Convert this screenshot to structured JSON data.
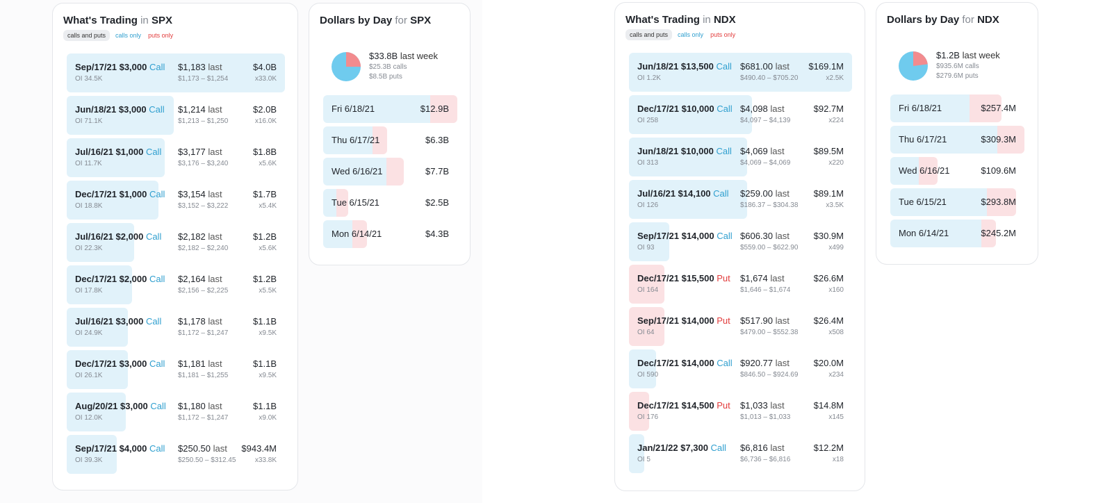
{
  "colors": {
    "call": "#2f9fcf",
    "put": "#e23b3b",
    "call_fill": "#e1f2fa",
    "put_fill": "#fbe1e3",
    "pie_calls": "#6fcbee",
    "pie_puts": "#f28b8e"
  },
  "filters": {
    "all": "calls and puts",
    "calls": "calls only",
    "puts": "puts only"
  },
  "spx": {
    "trading_title": "What's Trading",
    "trading_in": "in",
    "symbol": "SPX",
    "trades": [
      {
        "contract": "Sep/17/21 $3,000",
        "type": "Call",
        "oi": "OI 34.5K",
        "last": "$1,183",
        "last_label": "last",
        "range": "$1,173 – $1,254",
        "total": "$4.0B",
        "mult": "x33.0K",
        "fill": 1.0
      },
      {
        "contract": "Jun/18/21 $3,000",
        "type": "Call",
        "oi": "OI 71.1K",
        "last": "$1,214",
        "last_label": "last",
        "range": "$1,213 – $1,250",
        "total": "$2.0B",
        "mult": "x16.0K",
        "fill": 0.49
      },
      {
        "contract": "Jul/16/21 $1,000",
        "type": "Call",
        "oi": "OI 11.7K",
        "last": "$3,177",
        "last_label": "last",
        "range": "$3,176 – $3,240",
        "total": "$1.8B",
        "mult": "x5.6K",
        "fill": 0.45
      },
      {
        "contract": "Dec/17/21 $1,000",
        "type": "Call",
        "oi": "OI 18.8K",
        "last": "$3,154",
        "last_label": "last",
        "range": "$3,152 – $3,222",
        "total": "$1.7B",
        "mult": "x5.4K",
        "fill": 0.42
      },
      {
        "contract": "Jul/16/21 $2,000",
        "type": "Call",
        "oi": "OI 22.3K",
        "last": "$2,182",
        "last_label": "last",
        "range": "$2,182 – $2,240",
        "total": "$1.2B",
        "mult": "x5.6K",
        "fill": 0.31
      },
      {
        "contract": "Dec/17/21 $2,000",
        "type": "Call",
        "oi": "OI 17.8K",
        "last": "$2,164",
        "last_label": "last",
        "range": "$2,156 – $2,225",
        "total": "$1.2B",
        "mult": "x5.5K",
        "fill": 0.3
      },
      {
        "contract": "Jul/16/21 $3,000",
        "type": "Call",
        "oi": "OI 24.9K",
        "last": "$1,178",
        "last_label": "last",
        "range": "$1,172 – $1,247",
        "total": "$1.1B",
        "mult": "x9.5K",
        "fill": 0.28
      },
      {
        "contract": "Dec/17/21 $3,000",
        "type": "Call",
        "oi": "OI 26.1K",
        "last": "$1,181",
        "last_label": "last",
        "range": "$1,181 – $1,255",
        "total": "$1.1B",
        "mult": "x9.5K",
        "fill": 0.28
      },
      {
        "contract": "Aug/20/21 $3,000",
        "type": "Call",
        "oi": "OI 12.0K",
        "last": "$1,180",
        "last_label": "last",
        "range": "$1,172 – $1,247",
        "total": "$1.1B",
        "mult": "x9.0K",
        "fill": 0.27
      },
      {
        "contract": "Sep/17/21 $4,000",
        "type": "Call",
        "oi": "OI 39.3K",
        "last": "$250.50",
        "last_label": "last",
        "range": "$250.50 – $312.45",
        "total": "$943.4M",
        "mult": "x33.8K",
        "fill": 0.23
      }
    ],
    "dollars_title": "Dollars by Day",
    "dollars_for": "for",
    "total": "$33.8B",
    "total_label": "last week",
    "calls": "$25.3B calls",
    "puts": "$8.5B puts",
    "calls_frac": 0.749,
    "days": [
      {
        "label": "Fri 6/18/21",
        "value": "$12.9B",
        "calls_frac": 0.8,
        "puts_frac": 0.2
      },
      {
        "label": "Thu 6/17/21",
        "value": "$6.3B",
        "calls_frac": 0.37,
        "puts_frac": 0.11
      },
      {
        "label": "Wed 6/16/21",
        "value": "$7.7B",
        "calls_frac": 0.47,
        "puts_frac": 0.13
      },
      {
        "label": "Tue 6/15/21",
        "value": "$2.5B",
        "calls_frac": 0.1,
        "puts_frac": 0.09
      },
      {
        "label": "Mon 6/14/21",
        "value": "$4.3B",
        "calls_frac": 0.22,
        "puts_frac": 0.11
      }
    ]
  },
  "ndx": {
    "trading_title": "What's Trading",
    "trading_in": "in",
    "symbol": "NDX",
    "trades": [
      {
        "contract": "Jun/18/21 $13,500",
        "type": "Call",
        "oi": "OI 1.2K",
        "last": "$681.00",
        "last_label": "last",
        "range": "$490.40 – $705.20",
        "total": "$169.1M",
        "mult": "x2.5K",
        "fill": 1.0
      },
      {
        "contract": "Dec/17/21 $10,000",
        "type": "Call",
        "oi": "OI 258",
        "last": "$4,098",
        "last_label": "last",
        "range": "$4,097 – $4,139",
        "total": "$92.7M",
        "mult": "x224",
        "fill": 0.55
      },
      {
        "contract": "Jun/18/21 $10,000",
        "type": "Call",
        "oi": "OI 313",
        "last": "$4,069",
        "last_label": "last",
        "range": "$4,069 – $4,069",
        "total": "$89.5M",
        "mult": "x220",
        "fill": 0.53
      },
      {
        "contract": "Jul/16/21 $14,100",
        "type": "Call",
        "oi": "OI 126",
        "last": "$259.00",
        "last_label": "last",
        "range": "$186.37 – $304.38",
        "total": "$89.1M",
        "mult": "x3.5K",
        "fill": 0.53
      },
      {
        "contract": "Sep/17/21 $14,000",
        "type": "Call",
        "oi": "OI 93",
        "last": "$606.30",
        "last_label": "last",
        "range": "$559.00 – $622.90",
        "total": "$30.9M",
        "mult": "x499",
        "fill": 0.18
      },
      {
        "contract": "Dec/17/21 $15,500",
        "type": "Put",
        "oi": "OI 164",
        "last": "$1,674",
        "last_label": "last",
        "range": "$1,646 – $1,674",
        "total": "$26.6M",
        "mult": "x160",
        "fill": 0.16
      },
      {
        "contract": "Sep/17/21 $14,000",
        "type": "Put",
        "oi": "OI 64",
        "last": "$517.90",
        "last_label": "last",
        "range": "$479.00 – $552.38",
        "total": "$26.4M",
        "mult": "x508",
        "fill": 0.16
      },
      {
        "contract": "Dec/17/21 $14,000",
        "type": "Call",
        "oi": "OI 590",
        "last": "$920.77",
        "last_label": "last",
        "range": "$846.50 – $924.69",
        "total": "$20.0M",
        "mult": "x234",
        "fill": 0.12
      },
      {
        "contract": "Dec/17/21 $14,500",
        "type": "Put",
        "oi": "OI 176",
        "last": "$1,033",
        "last_label": "last",
        "range": "$1,013 – $1,033",
        "total": "$14.8M",
        "mult": "x145",
        "fill": 0.09
      },
      {
        "contract": "Jan/21/22 $7,300",
        "type": "Call",
        "oi": "OI 5",
        "last": "$6,816",
        "last_label": "last",
        "range": "$6,736 – $6,816",
        "total": "$12.2M",
        "mult": "x18",
        "fill": 0.07
      }
    ],
    "dollars_title": "Dollars by Day",
    "dollars_for": "for",
    "total": "$1.2B",
    "total_label": "last week",
    "calls": "$935.6M calls",
    "puts": "$279.6M puts",
    "calls_frac": 0.77,
    "days": [
      {
        "label": "Fri 6/18/21",
        "value": "$257.4M",
        "calls_frac": 0.59,
        "puts_frac": 0.24
      },
      {
        "label": "Thu 6/17/21",
        "value": "$309.3M",
        "calls_frac": 0.8,
        "puts_frac": 0.2
      },
      {
        "label": "Wed 6/16/21",
        "value": "$109.6M",
        "calls_frac": 0.21,
        "puts_frac": 0.14
      },
      {
        "label": "Tue 6/15/21",
        "value": "$293.8M",
        "calls_frac": 0.72,
        "puts_frac": 0.22
      },
      {
        "label": "Mon 6/14/21",
        "value": "$245.2M",
        "calls_frac": 0.68,
        "puts_frac": 0.11
      }
    ]
  }
}
